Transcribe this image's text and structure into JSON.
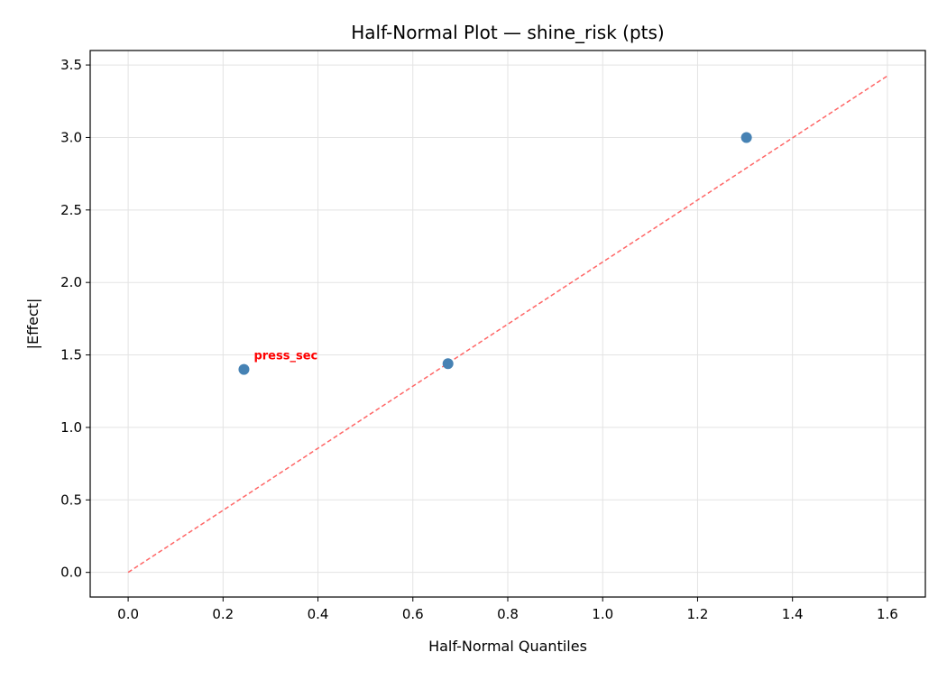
{
  "chart_data": {
    "type": "scatter",
    "title": "Half-Normal Plot — shine_risk (pts)",
    "xlabel": "Half-Normal Quantiles",
    "ylabel": "|Effect|",
    "xlim": [
      -0.08,
      1.68
    ],
    "ylim": [
      -0.17,
      3.6
    ],
    "xticks": [
      "0.0",
      "0.2",
      "0.4",
      "0.6",
      "0.8",
      "1.0",
      "1.2",
      "1.4",
      "1.6"
    ],
    "yticks": [
      "0.0",
      "0.5",
      "1.0",
      "1.5",
      "2.0",
      "2.5",
      "3.0",
      "3.5"
    ],
    "grid": true,
    "points": [
      {
        "x": 0.244,
        "y": 1.4,
        "label": "press_sec"
      },
      {
        "x": 0.674,
        "y": 1.44,
        "label": ""
      },
      {
        "x": 1.303,
        "y": 3.0,
        "label": ""
      }
    ],
    "reference_line": {
      "x": [
        0.0,
        1.6
      ],
      "y": [
        0.0,
        3.425
      ],
      "style": "dashed"
    },
    "colors": {
      "points": "#4682b4",
      "reference_line": "#ff6666",
      "annotation": "#ff0000"
    }
  }
}
